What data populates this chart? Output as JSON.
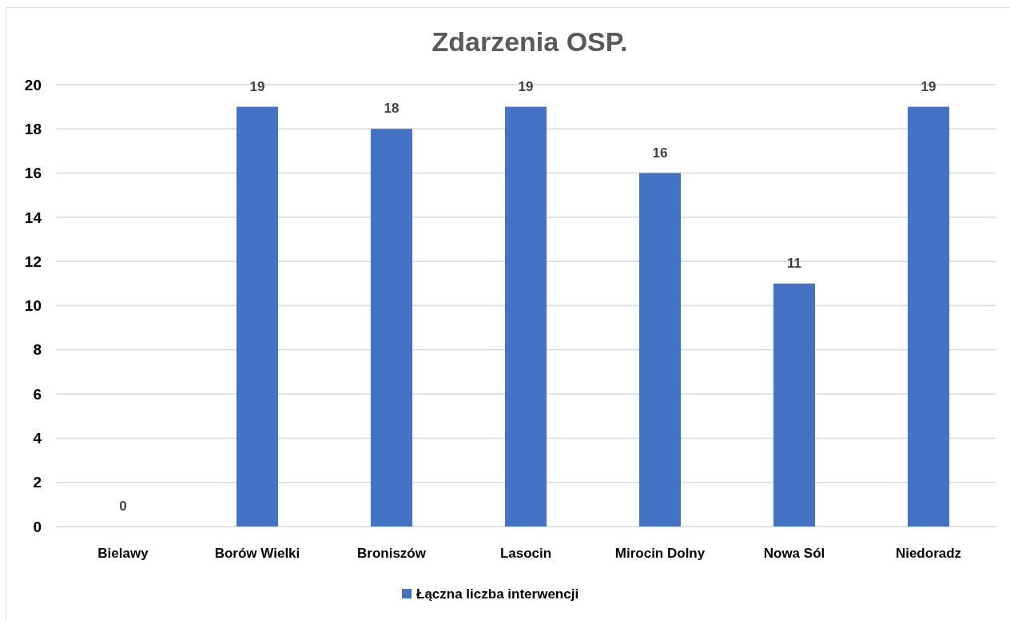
{
  "chart_data": {
    "type": "bar",
    "title": "Zdarzenia OSP.",
    "categories": [
      "Bielawy",
      "Borów Wielki",
      "Broniszów",
      "Lasocin",
      "Mirocin Dolny",
      "Nowa Sól",
      "Niedoradz"
    ],
    "series": [
      {
        "name": "Łączna liczba interwencji",
        "color": "#4472c4",
        "values": [
          0,
          19,
          18,
          19,
          16,
          11,
          19
        ]
      }
    ],
    "ylim": [
      0,
      20
    ],
    "yticks": [
      0,
      2,
      4,
      6,
      8,
      10,
      12,
      14,
      16,
      18,
      20
    ],
    "grid": "y",
    "legend": "bottom",
    "data_labels": true
  }
}
